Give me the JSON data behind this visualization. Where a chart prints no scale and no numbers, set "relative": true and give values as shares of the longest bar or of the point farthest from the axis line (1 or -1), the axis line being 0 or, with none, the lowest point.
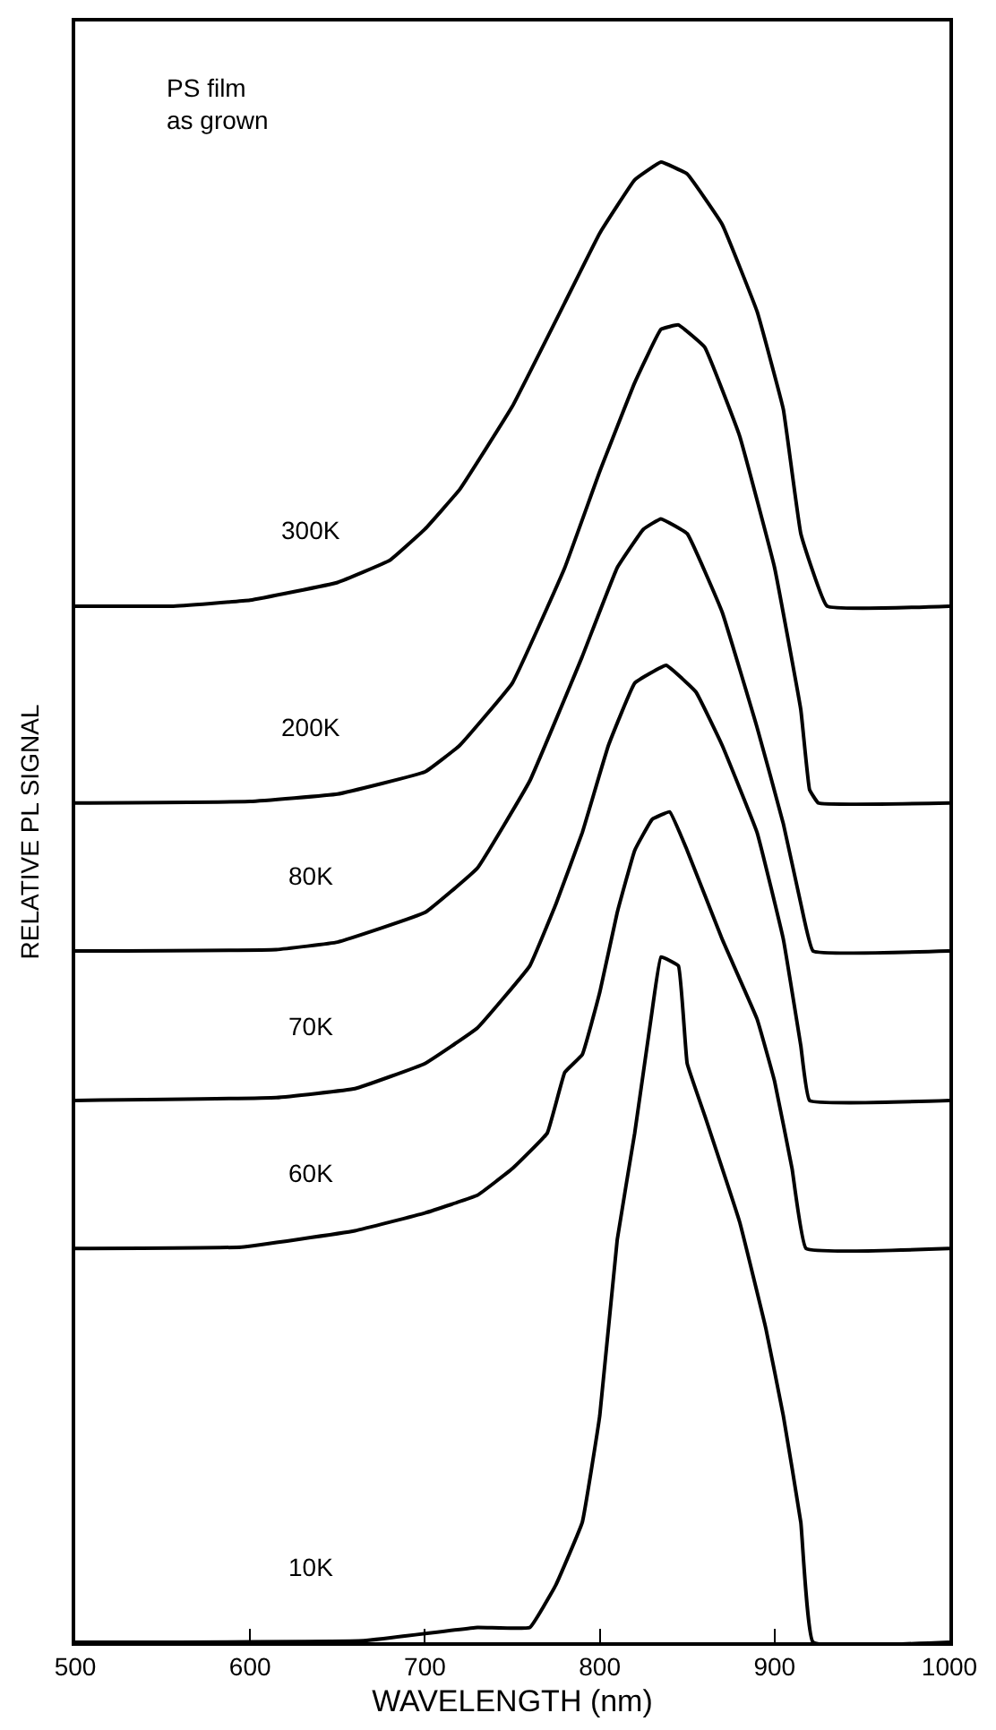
{
  "chart_data": {
    "type": "line",
    "relative": true,
    "xlabel": "WAVELENGTH (nm)",
    "ylabel": "RELATIVE PL SIGNAL",
    "xlim": [
      500,
      1000
    ],
    "xticks": [
      500,
      600,
      700,
      800,
      900,
      1000
    ],
    "legend": false,
    "marker": "none",
    "line_style": "solid",
    "annotations": [
      "PS film\nas grown"
    ],
    "series": [
      {
        "name": "300K",
        "color": "#000000",
        "x": [
          500,
          555,
          600,
          650,
          680,
          700,
          720,
          750,
          780,
          800,
          820,
          835,
          850,
          870,
          890,
          905,
          915,
          930,
          1000
        ],
        "values": [
          0.7,
          0.7,
          0.704,
          0.716,
          0.731,
          0.752,
          0.779,
          0.835,
          0.905,
          0.952,
          0.988,
          1.0,
          0.992,
          0.958,
          0.899,
          0.833,
          0.749,
          0.7,
          0.7
        ]
      },
      {
        "name": "200K",
        "color": "#000000",
        "x": [
          500,
          600,
          650,
          700,
          720,
          750,
          780,
          800,
          820,
          835,
          845,
          860,
          880,
          900,
          915,
          920,
          925,
          1000
        ],
        "values": [
          0.567,
          0.568,
          0.573,
          0.588,
          0.606,
          0.648,
          0.726,
          0.791,
          0.851,
          0.887,
          0.89,
          0.875,
          0.815,
          0.726,
          0.63,
          0.576,
          0.567,
          0.567
        ]
      },
      {
        "name": "80K",
        "color": "#000000",
        "x": [
          500,
          615,
          650,
          700,
          730,
          760,
          790,
          810,
          825,
          835,
          850,
          870,
          890,
          905,
          915,
          922,
          1000
        ],
        "values": [
          0.467,
          0.468,
          0.473,
          0.493,
          0.523,
          0.582,
          0.666,
          0.726,
          0.752,
          0.759,
          0.749,
          0.696,
          0.618,
          0.553,
          0.499,
          0.467,
          0.467
        ]
      },
      {
        "name": "70K",
        "color": "#000000",
        "x": [
          500,
          615,
          660,
          700,
          730,
          760,
          775,
          790,
          805,
          820,
          838,
          855,
          870,
          890,
          905,
          915,
          920,
          1000
        ],
        "values": [
          0.366,
          0.368,
          0.374,
          0.391,
          0.415,
          0.457,
          0.499,
          0.547,
          0.606,
          0.648,
          0.66,
          0.642,
          0.606,
          0.547,
          0.475,
          0.403,
          0.366,
          0.366
        ]
      },
      {
        "name": "60K",
        "color": "#000000",
        "x": [
          500,
          595,
          660,
          700,
          730,
          750,
          770,
          780,
          790,
          800,
          810,
          820,
          830,
          840,
          850,
          870,
          890,
          900,
          910,
          918,
          1000
        ],
        "values": [
          0.266,
          0.267,
          0.278,
          0.29,
          0.302,
          0.32,
          0.344,
          0.385,
          0.397,
          0.439,
          0.493,
          0.535,
          0.556,
          0.561,
          0.535,
          0.475,
          0.421,
          0.379,
          0.32,
          0.266,
          0.266
        ]
      },
      {
        "name": "10K",
        "color": "#000000",
        "x": [
          500,
          665,
          730,
          760,
          775,
          790,
          800,
          810,
          820,
          830,
          835,
          845,
          850,
          860,
          880,
          895,
          905,
          915,
          922,
          1000
        ],
        "values": [
          0.0,
          0.001,
          0.01,
          0.01,
          0.039,
          0.081,
          0.153,
          0.272,
          0.344,
          0.427,
          0.463,
          0.457,
          0.391,
          0.356,
          0.284,
          0.212,
          0.153,
          0.081,
          0.0,
          0.0
        ]
      }
    ]
  }
}
